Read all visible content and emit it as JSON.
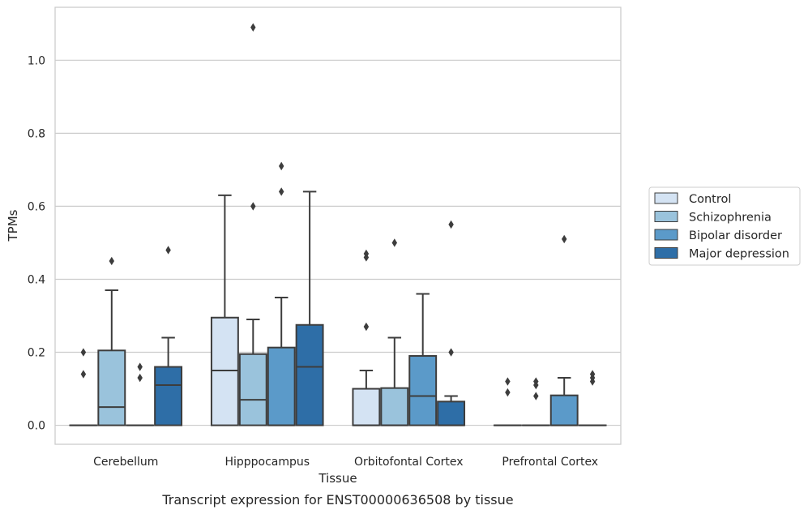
{
  "chart_data": {
    "type": "box",
    "title": "",
    "caption": "Transcript expression for ENST00000636508 by tissue",
    "xlabel": "Tissue",
    "ylabel": "TPMs",
    "ylim": [
      -0.052,
      1.145
    ],
    "yticks": [
      "0.0",
      "0.2",
      "0.4",
      "0.6",
      "0.8",
      "1.0"
    ],
    "ytick_values": [
      0.0,
      0.2,
      0.4,
      0.6,
      0.8,
      1.0
    ],
    "grid": true,
    "legend_position": "right",
    "categories": [
      "Cerebellum",
      "Hipppocampus",
      "Orbitofontal Cortex",
      "Prefrontal Cortex"
    ],
    "series": [
      {
        "name": "Control",
        "color": "#d4e3f3",
        "boxes": [
          {
            "q1": 0,
            "median": 0,
            "q3": 0,
            "whisker_low": 0,
            "whisker_high": 0,
            "outliers": [
              0.2,
              0.14
            ]
          },
          {
            "q1": 0,
            "median": 0.15,
            "q3": 0.295,
            "whisker_low": 0,
            "whisker_high": 0.63,
            "outliers": []
          },
          {
            "q1": 0,
            "median": 0,
            "q3": 0.1,
            "whisker_low": 0,
            "whisker_high": 0.15,
            "outliers": [
              0.47,
              0.46,
              0.27
            ]
          },
          {
            "q1": 0,
            "median": 0,
            "q3": 0,
            "whisker_low": 0,
            "whisker_high": 0,
            "outliers": [
              0.12,
              0.09
            ]
          }
        ]
      },
      {
        "name": "Schizophrenia",
        "color": "#9ac3dc",
        "boxes": [
          {
            "q1": 0,
            "median": 0.05,
            "q3": 0.205,
            "whisker_low": 0,
            "whisker_high": 0.37,
            "outliers": [
              0.45
            ]
          },
          {
            "q1": 0,
            "median": 0.07,
            "q3": 0.195,
            "whisker_low": 0,
            "whisker_high": 0.29,
            "outliers": [
              1.09,
              0.6
            ]
          },
          {
            "q1": 0,
            "median": 0,
            "q3": 0.102,
            "whisker_low": 0,
            "whisker_high": 0.24,
            "outliers": [
              0.5
            ]
          },
          {
            "q1": 0,
            "median": 0,
            "q3": 0,
            "whisker_low": 0,
            "whisker_high": 0,
            "outliers": [
              0.12,
              0.11,
              0.08
            ]
          }
        ]
      },
      {
        "name": "Bipolar disorder",
        "color": "#5b9ac9",
        "boxes": [
          {
            "q1": 0,
            "median": 0,
            "q3": 0,
            "whisker_low": 0,
            "whisker_high": 0,
            "outliers": [
              0.16,
              0.13
            ]
          },
          {
            "q1": 0,
            "median": 0,
            "q3": 0.213,
            "whisker_low": 0,
            "whisker_high": 0.35,
            "outliers": [
              0.71,
              0.64
            ]
          },
          {
            "q1": 0,
            "median": 0.08,
            "q3": 0.19,
            "whisker_low": 0,
            "whisker_high": 0.36,
            "outliers": []
          },
          {
            "q1": 0,
            "median": 0,
            "q3": 0.082,
            "whisker_low": 0,
            "whisker_high": 0.13,
            "outliers": [
              0.51
            ]
          }
        ]
      },
      {
        "name": "Major depression",
        "color": "#2e6ea7",
        "boxes": [
          {
            "q1": 0,
            "median": 0.11,
            "q3": 0.16,
            "whisker_low": 0,
            "whisker_high": 0.24,
            "outliers": [
              0.48
            ]
          },
          {
            "q1": 0,
            "median": 0.16,
            "q3": 0.275,
            "whisker_low": 0,
            "whisker_high": 0.64,
            "outliers": []
          },
          {
            "q1": 0,
            "median": 0,
            "q3": 0.065,
            "whisker_low": 0,
            "whisker_high": 0.08,
            "outliers": [
              0.55,
              0.2
            ]
          },
          {
            "q1": 0,
            "median": 0,
            "q3": 0,
            "whisker_low": 0,
            "whisker_high": 0,
            "outliers": [
              0.14,
              0.13,
              0.12
            ]
          }
        ]
      }
    ]
  }
}
